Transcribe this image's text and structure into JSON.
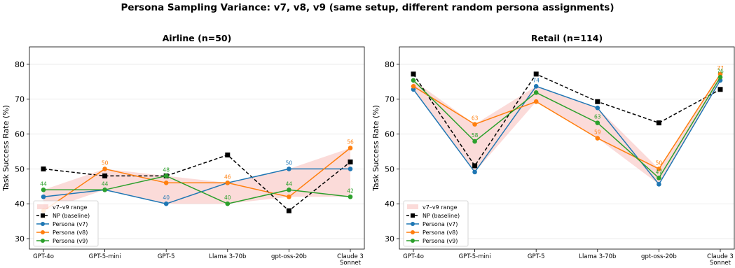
{
  "figure_title": "Persona Sampling Variance: v7, v8, v9 (same setup, different random persona assignments)",
  "legend_labels": {
    "range": "v7–v9 range",
    "np": "NP (baseline)",
    "v7": "Persona (v7)",
    "v8": "Persona (v8)",
    "v9": "Persona (v9)"
  },
  "colors": {
    "np": "#000000",
    "v7": "#1f77b4",
    "v8": "#ff7f0e",
    "v9": "#2ca02c",
    "range": "#f4a6a0"
  },
  "chart_data": [
    {
      "type": "line",
      "title": "Airline (n=50)",
      "ylabel": "Task Success Rate (%)",
      "ylim": [
        27,
        85
      ],
      "yticks": [
        30,
        40,
        50,
        60,
        70,
        80
      ],
      "categories": [
        "GPT-4o",
        "GPT-5-mini",
        "GPT-5",
        "Llama 3-70b",
        "gpt-oss-20b",
        "Claude 3 Sonnet"
      ],
      "grid": true,
      "legend_position": "lower-left",
      "series": [
        {
          "name": "NP (baseline)",
          "key": "np",
          "values": [
            50,
            48,
            48,
            54,
            38,
            52
          ]
        },
        {
          "name": "Persona (v7)",
          "key": "v7",
          "values": [
            42,
            44,
            40,
            46,
            50,
            50
          ]
        },
        {
          "name": "Persona (v8)",
          "key": "v8",
          "values": [
            38,
            50,
            46,
            46,
            42,
            56
          ]
        },
        {
          "name": "Persona (v9)",
          "key": "v9",
          "values": [
            44,
            44,
            48,
            40,
            44,
            42
          ]
        }
      ],
      "data_labels": [
        {
          "series": "v9",
          "index": 0,
          "text": "44"
        },
        {
          "series": "v8",
          "index": 0,
          "text": "38"
        },
        {
          "series": "v8",
          "index": 1,
          "text": "50"
        },
        {
          "series": "v9",
          "index": 1,
          "text": "44"
        },
        {
          "series": "v9",
          "index": 2,
          "text": "48"
        },
        {
          "series": "v7",
          "index": 2,
          "text": "40"
        },
        {
          "series": "v8",
          "index": 3,
          "text": "46"
        },
        {
          "series": "v9",
          "index": 3,
          "text": "40"
        },
        {
          "series": "v7",
          "index": 4,
          "text": "50"
        },
        {
          "series": "v9",
          "index": 4,
          "text": "44"
        },
        {
          "series": "v8",
          "index": 5,
          "text": "56"
        },
        {
          "series": "v9",
          "index": 5,
          "text": "42"
        }
      ]
    },
    {
      "type": "line",
      "title": "Retail (n=114)",
      "ylabel": "Task Success Rate (%)",
      "ylim": [
        27,
        85
      ],
      "yticks": [
        30,
        40,
        50,
        60,
        70,
        80
      ],
      "categories": [
        "GPT-4o",
        "GPT-5-mini",
        "GPT-5",
        "Llama 3-70b",
        "gpt-oss-20b",
        "Claude 3 Sonnet"
      ],
      "grid": true,
      "legend_position": "lower-left",
      "series": [
        {
          "name": "NP (baseline)",
          "key": "np",
          "values": [
            77.2,
            50.9,
            77.2,
            69.3,
            63.2,
            72.8
          ]
        },
        {
          "name": "Persona (v7)",
          "key": "v7",
          "values": [
            72.8,
            49.1,
            73.7,
            67.5,
            45.6,
            75.4
          ]
        },
        {
          "name": "Persona (v8)",
          "key": "v8",
          "values": [
            73.7,
            62.8,
            69.3,
            58.8,
            50.0,
            77.2
          ]
        },
        {
          "name": "Persona (v9)",
          "key": "v9",
          "values": [
            75.4,
            57.9,
            71.9,
            63.2,
            47.4,
            76.3
          ]
        }
      ],
      "data_labels": [
        {
          "series": "v8",
          "index": 1,
          "text": "63"
        },
        {
          "series": "v9",
          "index": 1,
          "text": "58"
        },
        {
          "series": "v7",
          "index": 2,
          "text": "74"
        },
        {
          "series": "v9",
          "index": 3,
          "text": "63"
        },
        {
          "series": "v8",
          "index": 3,
          "text": "59"
        },
        {
          "series": "v8",
          "index": 4,
          "text": "50"
        },
        {
          "series": "v9",
          "index": 4,
          "text": "47"
        },
        {
          "series": "v8",
          "index": 5,
          "text": "77"
        },
        {
          "series": "v9",
          "index": 5,
          "text": "76"
        }
      ]
    }
  ]
}
